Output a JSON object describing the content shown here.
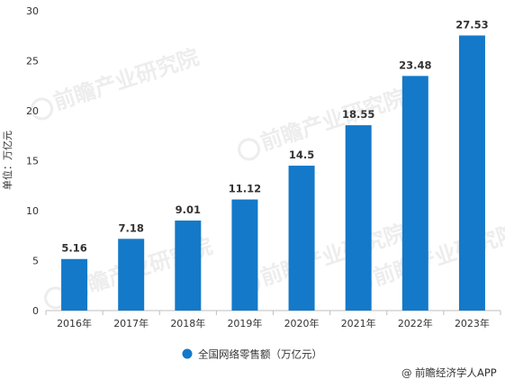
{
  "chart_data": {
    "type": "bar",
    "title": "",
    "xlabel": "",
    "ylabel": "单位：万亿元",
    "categories": [
      "2016年",
      "2017年",
      "2018年",
      "2019年",
      "2020年",
      "2021年",
      "2022年",
      "2023年"
    ],
    "series": [
      {
        "name": "全国网络零售额（万亿元）",
        "values": [
          5.16,
          7.18,
          9.01,
          11.12,
          14.5,
          18.55,
          23.48,
          27.53
        ],
        "labels": [
          "5.16",
          "7.18",
          "9.01",
          "11.12",
          "14.5",
          "18.55",
          "23.48",
          "27.53"
        ]
      }
    ],
    "ylim": [
      0,
      30
    ],
    "yticks": [
      0,
      5,
      10,
      15,
      20,
      25,
      30
    ],
    "grid": false,
    "legend_position": "bottom-center",
    "colors": {
      "bar": "#1479c9",
      "axis": "#bfbfbf",
      "text": "#333333"
    }
  },
  "watermark": "前瞻产业研究院",
  "footer": {
    "icon": "at-sign-icon",
    "symbol": "@",
    "text": "前瞻经济学人APP"
  }
}
